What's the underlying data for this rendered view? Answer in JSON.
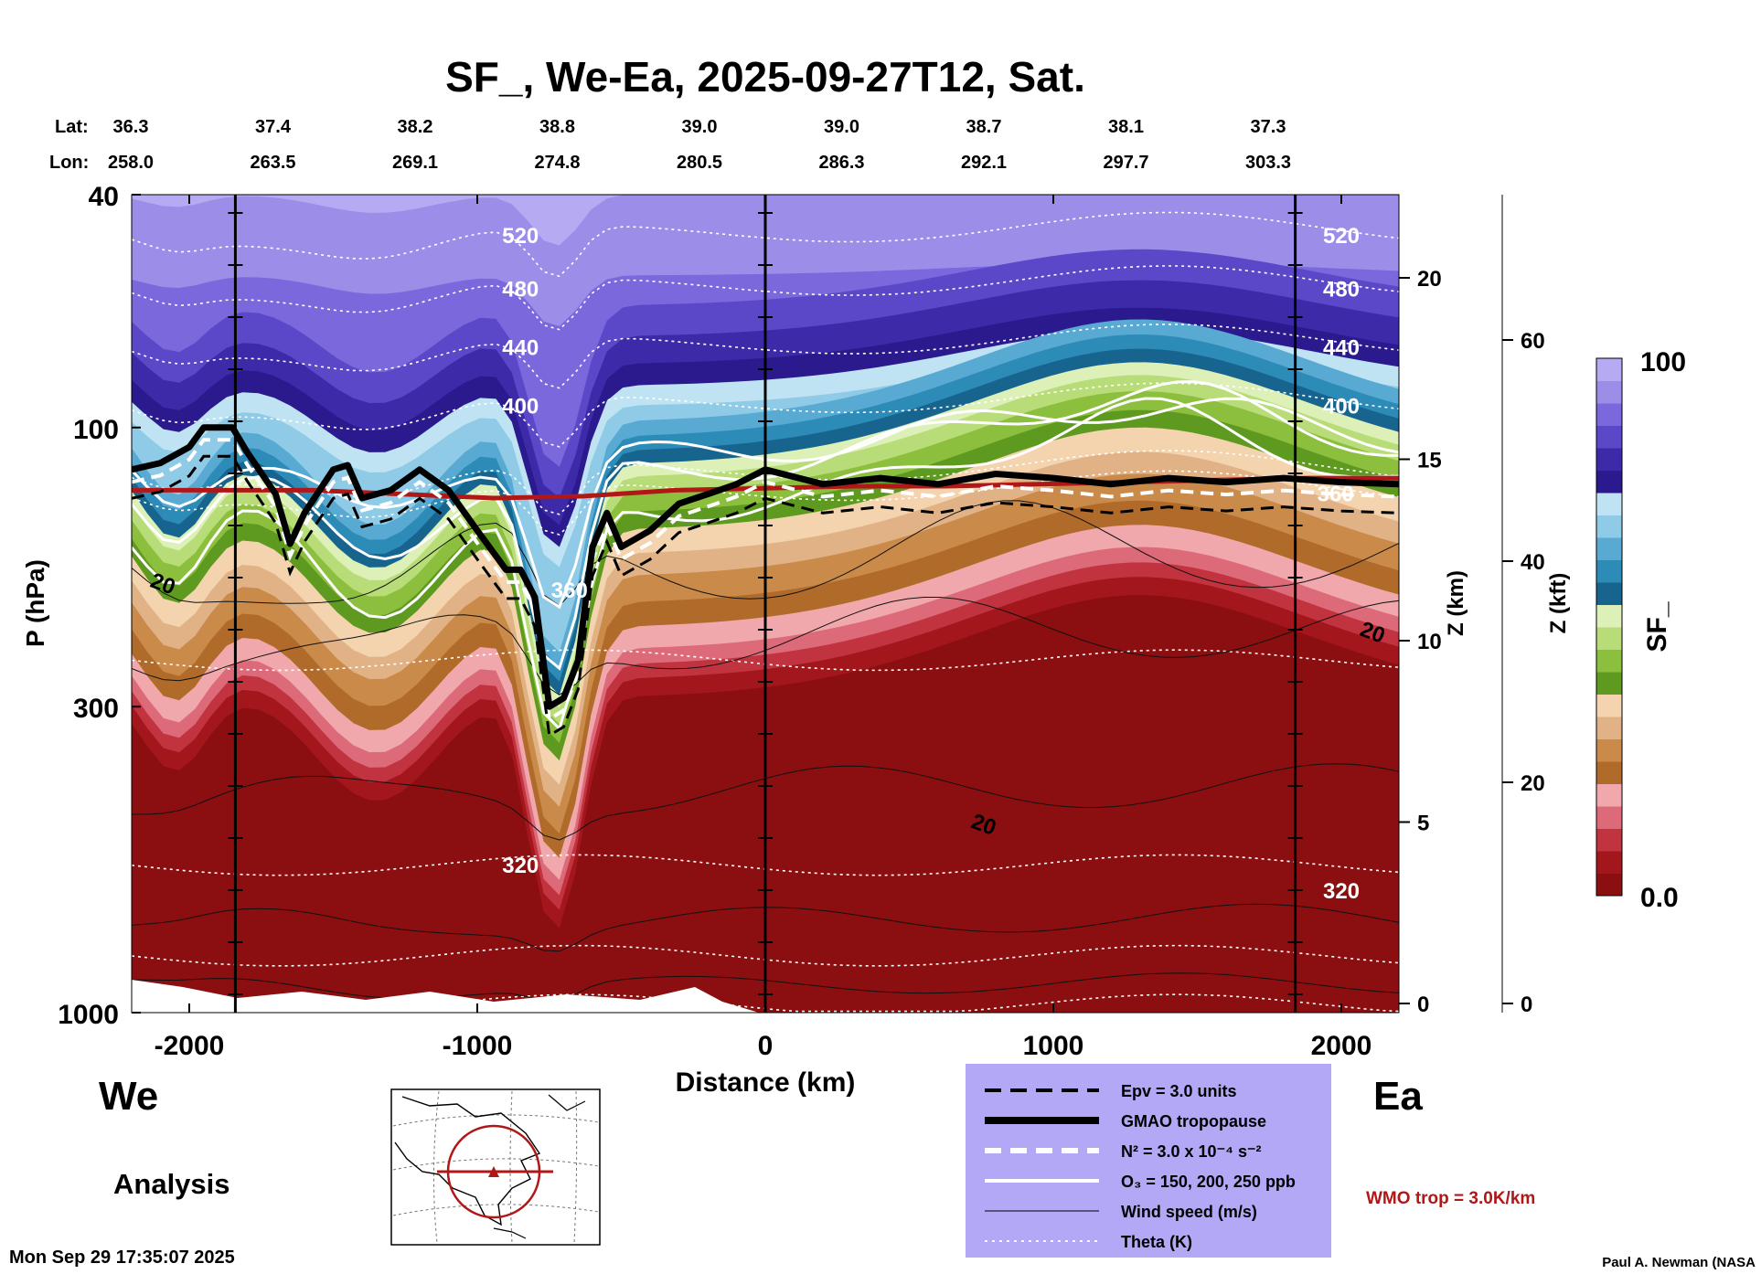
{
  "chart_data": {
    "type": "heatmap",
    "title": "SF_, We-Ea, 2025-09-27T12, Sat.",
    "lat_label": "Lat:",
    "lon_label": "Lon:",
    "lat": [
      "36.3",
      "37.4",
      "38.2",
      "38.8",
      "39.0",
      "39.0",
      "38.7",
      "38.1",
      "37.3"
    ],
    "lon": [
      "258.0",
      "263.5",
      "269.1",
      "274.8",
      "280.5",
      "286.3",
      "292.1",
      "297.7",
      "303.3"
    ],
    "xlabel": "Distance (km)",
    "ylabel": "P (hPa)",
    "xlim": [
      -2200,
      2200
    ],
    "ylim": [
      1000,
      40
    ],
    "x_ticks": [
      "-2000",
      "-1000",
      "0",
      "1000",
      "2000"
    ],
    "x_tick_values": [
      -2000,
      -1000,
      0,
      1000,
      2000
    ],
    "y_ticks": [
      "40",
      "100",
      "300",
      "1000"
    ],
    "y_tick_values": [
      40,
      100,
      300,
      1000
    ],
    "z_km_label": "Z (km)",
    "z_km_ticks": [
      "0",
      "5",
      "10",
      "15",
      "20"
    ],
    "z_km_values": [
      0,
      5,
      10,
      15,
      20
    ],
    "z_kft_label": "Z (kft)",
    "z_kft_ticks": [
      "0",
      "20",
      "40",
      "60"
    ],
    "z_kft_values": [
      0,
      20,
      40,
      60
    ],
    "colorbar": {
      "label": "SF_",
      "max_label": "100",
      "min_label": "0.0",
      "range": [
        0,
        100
      ],
      "colors": [
        "#8b0f10",
        "#a3161c",
        "#c23340",
        "#dd6a78",
        "#f0a8ad",
        "#b06a2a",
        "#c98a4a",
        "#e1b285",
        "#f3d4ae",
        "#5f9a20",
        "#8cbf3e",
        "#b8dd78",
        "#dcf0b8",
        "#17658f",
        "#2d8bb7",
        "#58aad2",
        "#8fcae6",
        "#bfe3f2",
        "#2a1a8e",
        "#3d2aa8",
        "#5b48c8",
        "#7a68dc",
        "#9c8ee8",
        "#b6aaf2"
      ]
    },
    "sections": {
      "left": "We",
      "right": "Ea",
      "note": "Analysis"
    },
    "theta_levels": [
      {
        "value": 520,
        "label": "520"
      },
      {
        "value": 480,
        "label": "480"
      },
      {
        "value": 440,
        "label": "440"
      },
      {
        "value": 400,
        "label": "400"
      },
      {
        "value": 360,
        "label": "360"
      },
      {
        "value": 320,
        "label": "320"
      }
    ],
    "sf_contour_labels": [
      "20",
      "20",
      "20"
    ],
    "tropopause_gmao": {
      "x": [
        -2200,
        -2100,
        -2000,
        -1950,
        -1900,
        -1850,
        -1800,
        -1700,
        -1650,
        -1600,
        -1500,
        -1450,
        -1400,
        -1300,
        -1200,
        -1100,
        -1000,
        -900,
        -850,
        -800,
        -750,
        -700,
        -650,
        -600,
        -550,
        -500,
        -400,
        -300,
        -200,
        -100,
        0,
        200,
        400,
        600,
        800,
        1000,
        1200,
        1400,
        1600,
        1800,
        2000,
        2200
      ],
      "p": [
        118,
        115,
        108,
        100,
        100,
        100,
        110,
        130,
        158,
        140,
        118,
        116,
        132,
        128,
        118,
        128,
        150,
        175,
        175,
        195,
        300,
        290,
        250,
        160,
        140,
        160,
        150,
        135,
        130,
        125,
        118,
        125,
        122,
        125,
        120,
        122,
        125,
        122,
        124,
        122,
        124,
        125
      ]
    },
    "wmo_tropopause_p": [
      128,
      128,
      128,
      130,
      132,
      131,
      128,
      127,
      126,
      126,
      125,
      124,
      123,
      122,
      122
    ],
    "legend": {
      "items": [
        {
          "style": "dashed-black",
          "label": "Epv = 3.0 units"
        },
        {
          "style": "thick-black",
          "label": "GMAO tropopause"
        },
        {
          "style": "dashed-white",
          "label": "N² = 3.0 x 10⁻⁴ s⁻²"
        },
        {
          "style": "solid-white",
          "label": "O₃ = 150, 200, 250 ppb"
        },
        {
          "style": "thin-black",
          "label": "Wind speed (m/s)"
        },
        {
          "style": "dotted-white",
          "label": "Theta (K)"
        }
      ]
    },
    "wmo_label": "WMO trop = 3.0K/km",
    "timestamp": "Mon Sep 29 17:35:07 2025",
    "credit": "Paul A. Newman (NASA",
    "colors": {
      "legend_bg": "#b3a8f5",
      "wmo_red": "#b01818",
      "stratosphere": "#b6aaf2",
      "troposphere": "#961212"
    }
  }
}
